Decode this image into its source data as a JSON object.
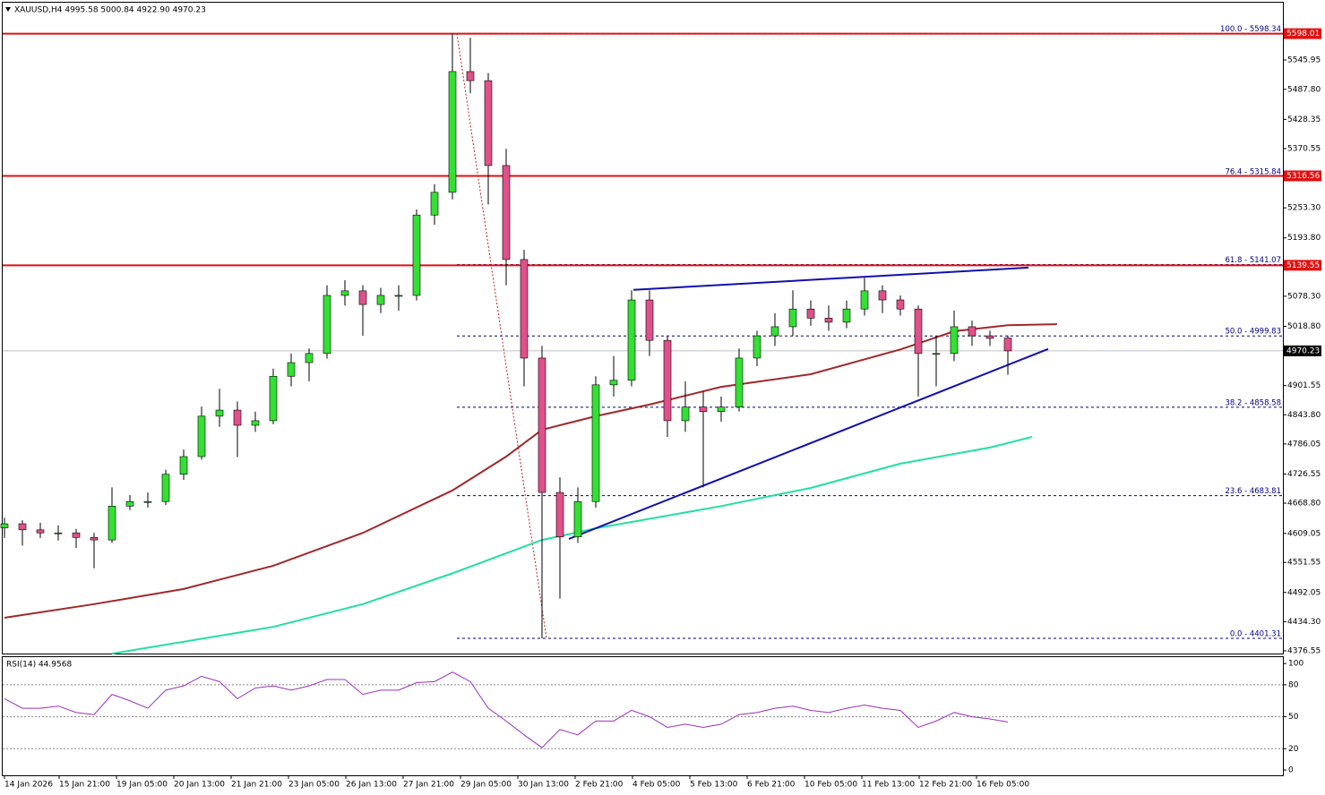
{
  "chart_data": [
    {
      "type": "candlestick",
      "title": "XAUUSD,H4  4995.58 5000.84 4922.90 4970.23",
      "up_color": "#33e033",
      "down_color": "#e0508a",
      "open": [
        4620,
        4628,
        4616,
        4610,
        4610,
        4601,
        4596,
        4663,
        4672,
        4672,
        4726,
        4761,
        4841,
        4853,
        4823,
        4832,
        4920,
        4947,
        4965,
        5080,
        5089,
        5062,
        5080,
        5080,
        5239,
        5284,
        5523,
        5505,
        5337,
        5151,
        4956,
        4690,
        4602,
        4672,
        4903,
        4912,
        5071,
        4991,
        4832,
        4859,
        4850,
        4859,
        4956,
        5000,
        5018,
        5053,
        5035,
        5027,
        5053,
        5089,
        5071,
        5053,
        4965,
        4965,
        5018,
        5000,
        4995.58
      ],
      "high": [
        4640,
        4635,
        4630,
        4625,
        4618,
        4610,
        4700,
        4685,
        4690,
        4735,
        4775,
        4860,
        4895,
        4870,
        4850,
        4935,
        4965,
        4975,
        5100,
        5110,
        5100,
        5095,
        5100,
        5250,
        5300,
        5598,
        5590,
        5520,
        5370,
        5170,
        4980,
        4720,
        4700,
        4920,
        4960,
        5090,
        5090,
        5000,
        4910,
        4890,
        4880,
        4975,
        5010,
        5045,
        5090,
        5070,
        5060,
        5070,
        5115,
        5100,
        5080,
        5060,
        5000,
        5050,
        5030,
        5010,
        5000.84
      ],
      "low": [
        4600,
        4585,
        4600,
        4595,
        4580,
        4540,
        4590,
        4655,
        4660,
        4665,
        4715,
        4755,
        4820,
        4760,
        4810,
        4825,
        4900,
        4910,
        4955,
        5060,
        5000,
        5045,
        5050,
        5070,
        5220,
        5270,
        5480,
        5260,
        5100,
        4900,
        4401,
        4480,
        4590,
        4660,
        4880,
        4900,
        4960,
        4800,
        4810,
        4700,
        4830,
        4850,
        4940,
        4980,
        5000,
        5020,
        5010,
        5015,
        5040,
        5045,
        5040,
        4880,
        4900,
        4950,
        4980,
        4980,
        4922.9
      ],
      "close": [
        4628,
        4616,
        4610,
        4610,
        4601,
        4596,
        4663,
        4672,
        4672,
        4726,
        4761,
        4841,
        4853,
        4823,
        4832,
        4920,
        4947,
        4965,
        5080,
        5089,
        5062,
        5080,
        5080,
        5239,
        5284,
        5523,
        5505,
        5337,
        5151,
        4956,
        4690,
        4602,
        4672,
        4903,
        4912,
        5071,
        4991,
        4832,
        4859,
        4850,
        4859,
        4956,
        5000,
        5018,
        5053,
        5035,
        5027,
        5053,
        5089,
        5071,
        5053,
        4965,
        4965,
        5018,
        5000,
        4995,
        4970.23
      ],
      "xlim": [
        -0.1,
        71.35
      ],
      "xticks": [
        {
          "value": 0,
          "label": "14 Jan 2026"
        },
        {
          "value": 3.05,
          "label": "15 Jan 21:00"
        },
        {
          "value": 6.25,
          "label": "19 Jan 05:00"
        },
        {
          "value": 9.45,
          "label": "20 Jan 13:00"
        },
        {
          "value": 12.65,
          "label": "21 Jan 21:00"
        },
        {
          "value": 15.85,
          "label": "23 Jan 05:00"
        },
        {
          "value": 19.05,
          "label": "26 Jan 13:00"
        },
        {
          "value": 22.25,
          "label": "27 Jan 21:00"
        },
        {
          "value": 25.45,
          "label": "29 Jan 05:00"
        },
        {
          "value": 28.65,
          "label": "30 Jan 13:00"
        },
        {
          "value": 31.85,
          "label": "2 Feb 21:00"
        },
        {
          "value": 35.05,
          "label": "4 Feb 05:00"
        },
        {
          "value": 38.25,
          "label": "5 Feb 13:00"
        },
        {
          "value": 41.45,
          "label": "6 Feb 21:00"
        },
        {
          "value": 44.65,
          "label": "10 Feb 05:00"
        },
        {
          "value": 47.85,
          "label": "11 Feb 13:00"
        },
        {
          "value": 51.05,
          "label": "12 Feb 21:00"
        },
        {
          "value": 54.25,
          "label": "16 Feb 05:00"
        }
      ],
      "ylim": [
        4371.2,
        5659.3
      ],
      "yticks": [
        {
          "value": 5545.95,
          "label": "5545.95"
        },
        {
          "value": 5487.8,
          "label": "5487.80"
        },
        {
          "value": 5428.35,
          "label": "5428.35"
        },
        {
          "value": 5370.55,
          "label": "5370.55"
        },
        {
          "value": 5253.3,
          "label": "5253.30"
        },
        {
          "value": 5193.8,
          "label": "5193.80"
        },
        {
          "value": 5078.3,
          "label": "5078.30"
        },
        {
          "value": 5018.8,
          "label": "5018.80"
        },
        {
          "value": 4901.55,
          "label": "4901.55"
        },
        {
          "value": 4843.8,
          "label": "4843.80"
        },
        {
          "value": 4786.05,
          "label": "4786.05"
        },
        {
          "value": 4726.55,
          "label": "4726.55"
        },
        {
          "value": 4668.8,
          "label": "4668.80"
        },
        {
          "value": 4609.05,
          "label": "4609.05"
        },
        {
          "value": 4551.55,
          "label": "4551.55"
        },
        {
          "value": 4492.05,
          "label": "4492.05"
        },
        {
          "value": 4434.3,
          "label": "4434.30"
        },
        {
          "value": 4376.55,
          "label": "4376.55"
        }
      ],
      "price_labels": [
        {
          "value": 5598.01,
          "label": "5598.01",
          "color": "#e01010"
        },
        {
          "value": 5316.56,
          "label": "5316.56",
          "color": "#e01010"
        },
        {
          "value": 5139.55,
          "label": "5139.55",
          "color": "#e01010"
        },
        {
          "value": 4970.23,
          "label": "4970.23",
          "color": "#000000"
        }
      ],
      "fib_levels": [
        {
          "value": 5598.34,
          "label": "100.0 - 5598.34"
        },
        {
          "value": 5315.84,
          "label": "76.4 - 5315.84"
        },
        {
          "value": 5141.07,
          "label": "61.8 - 5141.07"
        },
        {
          "value": 4999.83,
          "label": "50.0 - 4999.83"
        },
        {
          "value": 4858.58,
          "label": "38.2 - 4858.58"
        },
        {
          "value": 4683.81,
          "label": "23.6 - 4683.81"
        },
        {
          "value": 4401.31,
          "label": "0.0 - 4401.31"
        }
      ],
      "fib_line": {
        "x": [
          25.25,
          30.25
        ],
        "values": [
          5598.34,
          4401.31
        ],
        "color": "#c02020"
      },
      "lines": [
        {
          "color": "#a0282a",
          "x": [
            0,
            5,
            10,
            15,
            20,
            25,
            28,
            30,
            33,
            36,
            40,
            45,
            50,
            53,
            56,
            58.75
          ],
          "values": [
            4442,
            4469,
            4499,
            4545,
            4610,
            4694,
            4761,
            4814,
            4841,
            4864,
            4899,
            4924,
            4973,
            5009,
            5021,
            5023
          ]
        },
        {
          "color": "#20e0a0",
          "x": [
            6,
            15,
            20,
            25,
            30,
            33,
            40,
            45,
            50,
            55,
            57.35
          ],
          "values": [
            4371,
            4424,
            4469,
            4530,
            4596,
            4619,
            4663,
            4699,
            4747,
            4779,
            4800
          ]
        }
      ],
      "trendlines": [
        {
          "color": "#1010b0",
          "x": [
            35.1,
            57.15
          ],
          "values": [
            5091,
            5135
          ]
        },
        {
          "color": "#1010b0",
          "x": [
            31.5,
            58.25
          ],
          "values": [
            4598,
            4974
          ]
        }
      ]
    },
    {
      "type": "line",
      "title": "RSI(14) 44.9568",
      "color": "#9b30c0",
      "values": [
        67,
        58,
        58,
        60,
        54,
        52,
        71,
        65,
        58,
        75,
        79,
        88,
        83,
        67,
        77,
        79,
        75,
        79,
        85,
        85,
        71,
        75,
        75,
        82,
        83,
        92,
        83,
        58,
        46,
        33,
        21,
        38,
        33,
        46,
        46,
        56,
        50,
        40,
        43,
        40,
        43,
        52,
        54,
        58,
        60,
        56,
        54,
        58,
        61,
        58,
        56,
        40,
        46,
        54,
        50,
        48,
        45
      ],
      "ylim": [
        -5,
        106
      ],
      "yticks": [
        100,
        80,
        50,
        20,
        0
      ]
    }
  ]
}
